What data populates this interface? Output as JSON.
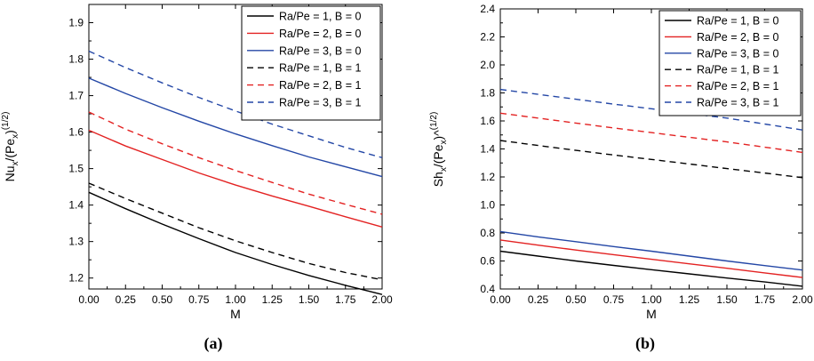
{
  "chart_data": [
    {
      "type": "line",
      "panel_label": "(a)",
      "xlabel": "M",
      "ylabel": {
        "base": "Nu",
        "sub1": "x",
        "mid": "/(Pe",
        "sub2": "x",
        "close": ")",
        "sup": "(1/2)"
      },
      "xlim": [
        0,
        2
      ],
      "ylim": [
        1.17,
        1.95
      ],
      "xticks": [
        "0.00",
        "0.25",
        "0.50",
        "0.75",
        "1.00",
        "1.25",
        "1.50",
        "1.75",
        "2.00"
      ],
      "yticks": [
        "1.2",
        "1.3",
        "1.4",
        "1.5",
        "1.6",
        "1.7",
        "1.8",
        "1.9"
      ],
      "legend_position": "top-right",
      "x": [
        0,
        0.25,
        0.5,
        0.75,
        1.0,
        1.25,
        1.5,
        1.75,
        2.0
      ],
      "series": [
        {
          "name": "Ra/Pe = 1, B = 0",
          "color": "#000000",
          "dash": "solid",
          "values": [
            1.435,
            1.39,
            1.348,
            1.308,
            1.27,
            1.237,
            1.207,
            1.18,
            1.155
          ]
        },
        {
          "name": "Ra/Pe = 2, B = 0",
          "color": "#e32222",
          "dash": "solid",
          "values": [
            1.605,
            1.562,
            1.525,
            1.488,
            1.455,
            1.425,
            1.397,
            1.368,
            1.34
          ]
        },
        {
          "name": "Ra/Pe = 3, B = 0",
          "color": "#2447a6",
          "dash": "solid",
          "values": [
            1.748,
            1.706,
            1.667,
            1.63,
            1.595,
            1.563,
            1.532,
            1.505,
            1.478
          ]
        },
        {
          "name": "Ra/Pe = 1, B = 1",
          "color": "#000000",
          "dash": "dashed",
          "values": [
            1.46,
            1.418,
            1.378,
            1.338,
            1.302,
            1.27,
            1.24,
            1.215,
            1.195
          ]
        },
        {
          "name": "Ra/Pe = 2, B = 1",
          "color": "#e32222",
          "dash": "dashed",
          "values": [
            1.655,
            1.608,
            1.568,
            1.53,
            1.495,
            1.462,
            1.43,
            1.402,
            1.375
          ]
        },
        {
          "name": "Ra/Pe = 3, B = 1",
          "color": "#2447a6",
          "dash": "dashed",
          "values": [
            1.822,
            1.777,
            1.735,
            1.695,
            1.658,
            1.622,
            1.59,
            1.558,
            1.53
          ]
        }
      ]
    },
    {
      "type": "line",
      "panel_label": "(b)",
      "xlabel": "M",
      "ylabel": {
        "base": "Sh",
        "sub1": "x",
        "mid": "/(Pe",
        "sub2": "x",
        "close": ")^",
        "sup": "(1/2)"
      },
      "xlim": [
        0,
        2
      ],
      "ylim": [
        0.4,
        2.4
      ],
      "xticks": [
        "0.00",
        "0.25",
        "0.50",
        "0.75",
        "1.00",
        "1.25",
        "1.50",
        "1.75",
        "2.00"
      ],
      "yticks": [
        "0.4",
        "0.6",
        "0.8",
        "1.0",
        "1.2",
        "1.4",
        "1.6",
        "1.8",
        "2.0",
        "2.2",
        "2.4"
      ],
      "legend_position": "top-right",
      "x": [
        0,
        0.25,
        0.5,
        0.75,
        1.0,
        1.25,
        1.5,
        1.75,
        2.0
      ],
      "series": [
        {
          "name": "Ra/Pe = 1, B = 0",
          "color": "#000000",
          "dash": "solid",
          "values": [
            0.67,
            0.635,
            0.6,
            0.568,
            0.538,
            0.508,
            0.478,
            0.45,
            0.42
          ]
        },
        {
          "name": "Ra/Pe = 2, B = 0",
          "color": "#e32222",
          "dash": "solid",
          "values": [
            0.75,
            0.713,
            0.678,
            0.645,
            0.612,
            0.58,
            0.548,
            0.515,
            0.482
          ]
        },
        {
          "name": "Ra/Pe = 3, B = 0",
          "color": "#2447a6",
          "dash": "solid",
          "values": [
            0.81,
            0.772,
            0.738,
            0.703,
            0.67,
            0.635,
            0.6,
            0.567,
            0.535
          ]
        },
        {
          "name": "Ra/Pe = 1, B = 1",
          "color": "#000000",
          "dash": "dashed",
          "values": [
            1.46,
            1.425,
            1.39,
            1.357,
            1.325,
            1.293,
            1.26,
            1.228,
            1.195
          ]
        },
        {
          "name": "Ra/Pe = 2, B = 1",
          "color": "#e32222",
          "dash": "dashed",
          "values": [
            1.655,
            1.62,
            1.585,
            1.55,
            1.517,
            1.483,
            1.45,
            1.413,
            1.375
          ]
        },
        {
          "name": "Ra/Pe = 3, B = 1",
          "color": "#2447a6",
          "dash": "dashed",
          "values": [
            1.825,
            1.79,
            1.755,
            1.72,
            1.687,
            1.653,
            1.62,
            1.578,
            1.535
          ]
        }
      ]
    }
  ]
}
